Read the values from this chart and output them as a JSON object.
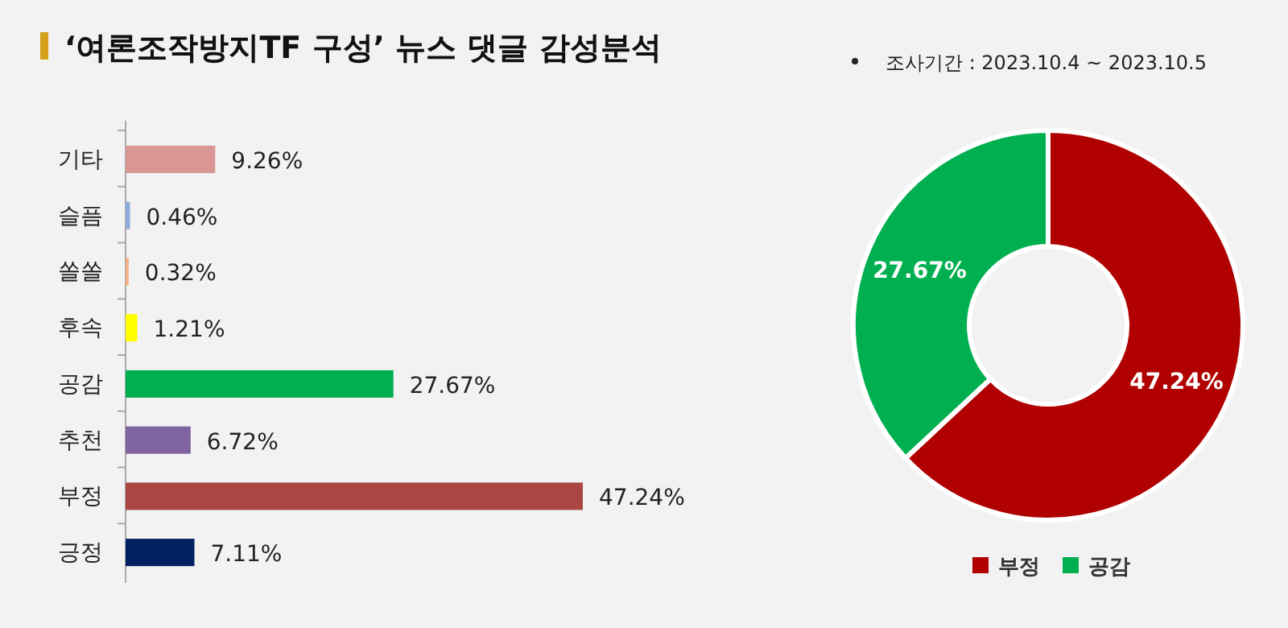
{
  "chart_data": [
    {
      "type": "bar",
      "orientation": "horizontal",
      "title": "‘여론조작방지TF 구성’ 뉴스 댓글 감성분석",
      "categories": [
        "기타",
        "슬픔",
        "쏠쏠",
        "후속",
        "공감",
        "추천",
        "부정",
        "긍정"
      ],
      "values": [
        9.26,
        0.46,
        0.32,
        1.21,
        27.67,
        6.72,
        47.24,
        7.11
      ],
      "colors": [
        "#d99694",
        "#8eaadb",
        "#f4b183",
        "#ffff00",
        "#00b050",
        "#8064a2",
        "#ab4642",
        "#002060"
      ],
      "value_labels": [
        "9.26%",
        "0.46%",
        "0.32%",
        "1.21%",
        "27.67%",
        "6.72%",
        "47.24%",
        "7.11%"
      ]
    },
    {
      "type": "donut",
      "categories": [
        "부정",
        "공감"
      ],
      "values": [
        47.24,
        27.67
      ],
      "colors": [
        "#b00000",
        "#00b050"
      ],
      "value_labels": [
        "47.24%",
        "27.67%"
      ],
      "legend": "bottom",
      "annotations": [
        "조사기간 : 2023.10.4 ~ 2023.10.5"
      ]
    }
  ]
}
